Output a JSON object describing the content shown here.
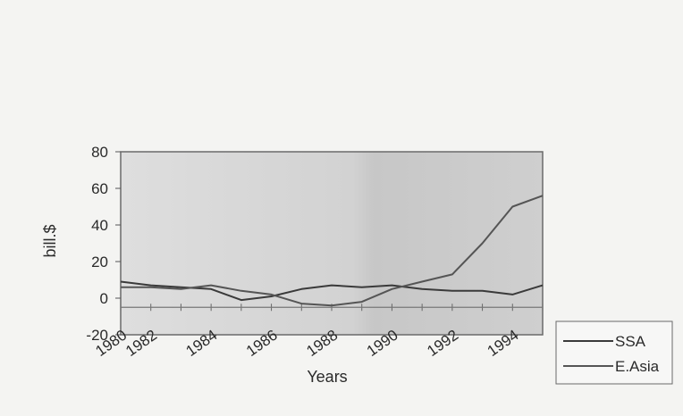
{
  "chart_data": {
    "type": "line",
    "title": "",
    "xlabel": "Years",
    "ylabel": "bill.$",
    "x": [
      1981,
      1982,
      1983,
      1984,
      1985,
      1986,
      1987,
      1988,
      1989,
      1990,
      1991,
      1992,
      1993,
      1994,
      1995
    ],
    "x_tick_labels": [
      "1980",
      "1982",
      "1984",
      "1986",
      "1988",
      "1990",
      "1992",
      "1994"
    ],
    "y_tick_labels": [
      "80",
      "60",
      "40",
      "20",
      "0",
      "-20"
    ],
    "xlim": [
      1981,
      1995
    ],
    "ylim": [
      -20,
      80
    ],
    "y_ticks": [
      80,
      60,
      40,
      20,
      0,
      -20
    ],
    "grid": false,
    "legend_position": "bottom-right",
    "series": [
      {
        "name": "SSA",
        "color": "#3a3a3a",
        "values": [
          9,
          7,
          6,
          5,
          -1,
          1,
          5,
          7,
          6,
          7,
          5,
          4,
          4,
          2,
          7
        ]
      },
      {
        "name": "E.Asia",
        "color": "#555555",
        "values": [
          6,
          6,
          5,
          7,
          4,
          2,
          -3,
          -4,
          -2,
          5,
          9,
          13,
          30,
          50,
          56
        ]
      }
    ],
    "reference_line_value": -5
  }
}
